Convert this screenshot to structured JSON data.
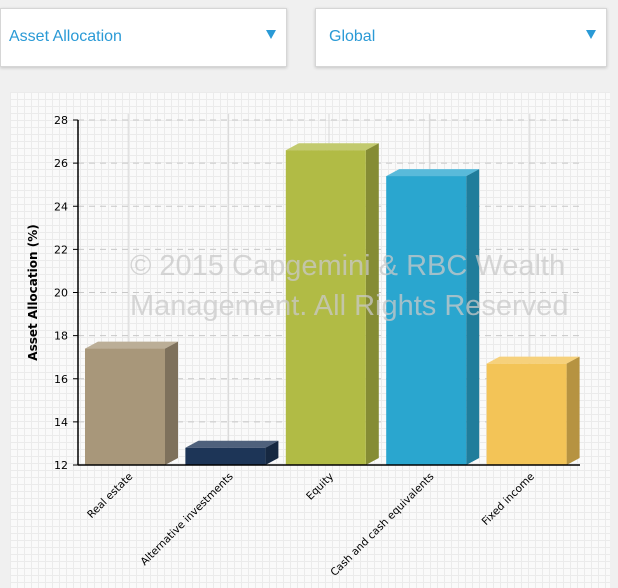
{
  "filters": {
    "left": {
      "label": "Asset Allocation",
      "icon": "triangle-down-icon"
    },
    "right": {
      "label": "Global",
      "icon": "triangle-down-icon"
    }
  },
  "colors": {
    "accent": "#2a9ad6"
  },
  "watermark": {
    "line1": "© 2015 Capgemini & RBC Wealth",
    "line2": "Management. All Rights Reserved"
  },
  "chart_data": {
    "type": "bar",
    "ylabel": "Asset Allocation (%)",
    "xlabel": "",
    "ylim": [
      12,
      28
    ],
    "yticks": [
      12,
      14,
      16,
      18,
      20,
      22,
      24,
      26,
      28
    ],
    "grid": true,
    "categories": [
      "Real estate",
      "Alternative investments",
      "Equity",
      "Cash and cash equivalents",
      "Fixed income"
    ],
    "values": [
      17.4,
      12.8,
      26.6,
      25.4,
      16.7
    ],
    "colors": [
      "#a8977a",
      "#1d3557",
      "#b1bb45",
      "#2aa6cf",
      "#f3c457"
    ]
  }
}
